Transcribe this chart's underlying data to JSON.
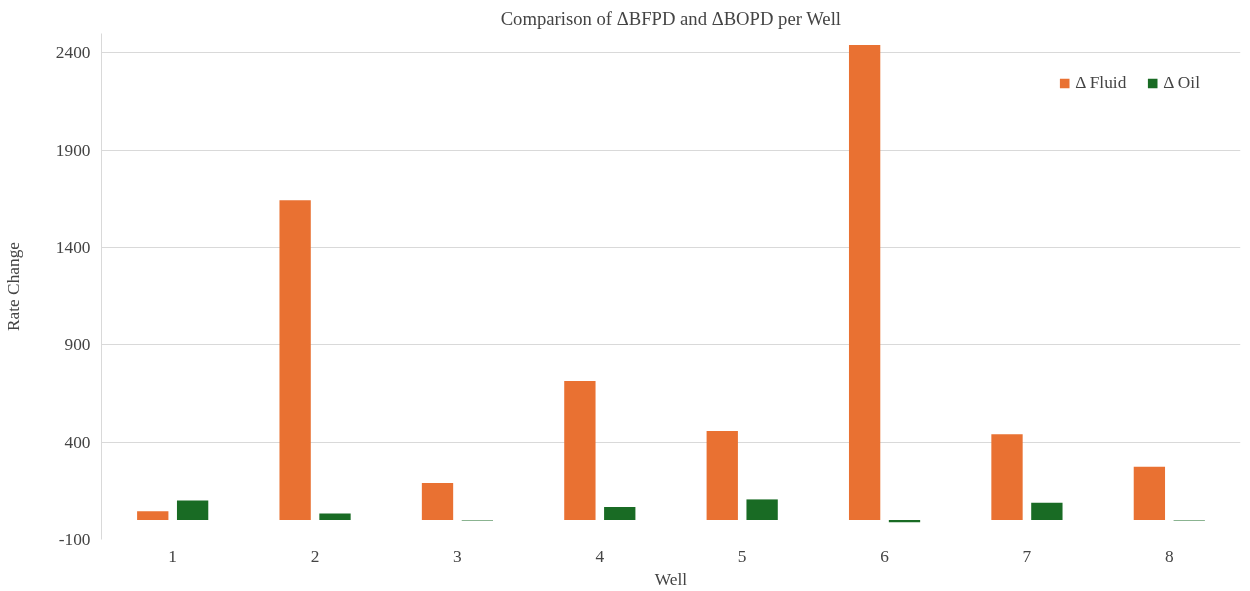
{
  "chart_data": {
    "type": "bar",
    "title": "Comparison of ΔBFPD and ΔBOPD per Well",
    "xlabel": "Well",
    "ylabel": "Rate Change",
    "categories": [
      "1",
      "2",
      "3",
      "4",
      "5",
      "6",
      "7",
      "8"
    ],
    "series": [
      {
        "name": "Δ Fluid",
        "color": "#e97132",
        "values": [
          45,
          1643,
          190,
          715,
          458,
          2441,
          441,
          274
        ]
      },
      {
        "name": "Δ Oil",
        "color": "#196b24",
        "values": [
          100,
          34,
          -3,
          67,
          106,
          -11,
          89,
          -3
        ]
      }
    ],
    "ylim": [
      -100,
      2500
    ],
    "yticks": [
      -100,
      400,
      900,
      1400,
      1900,
      2400
    ],
    "grid": "y",
    "legend": "top right"
  }
}
